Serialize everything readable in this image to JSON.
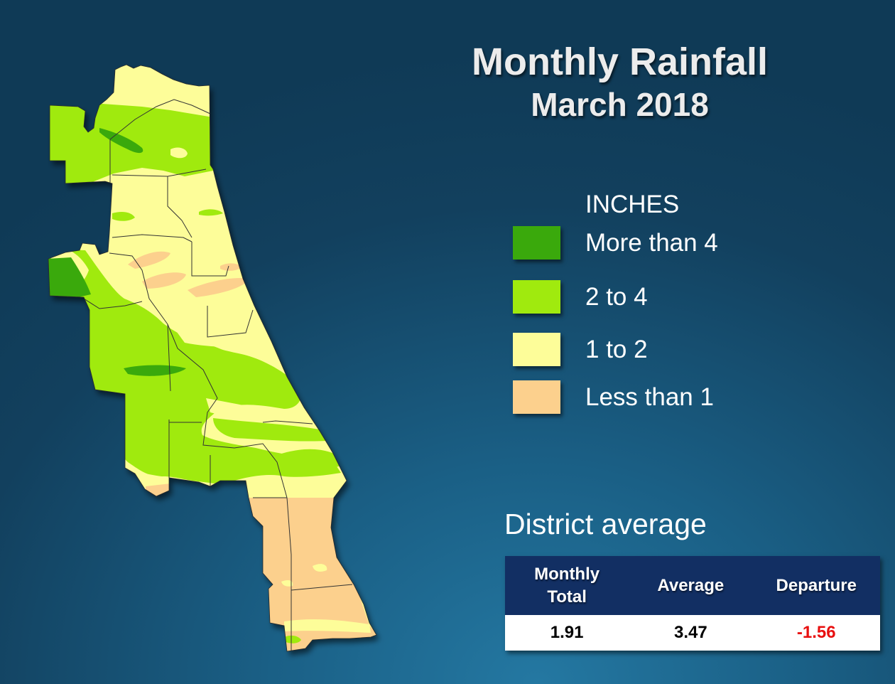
{
  "title": "Monthly Rainfall",
  "subtitle": "March 2018",
  "legend": {
    "heading": "INCHES",
    "items": [
      {
        "label": "More than 4",
        "color": "#3aa90c"
      },
      {
        "label": "2 to 4",
        "color": "#a0ea0e"
      },
      {
        "label": "1 to 2",
        "color": "#fdfd99"
      },
      {
        "label": "Less than 1",
        "color": "#fcd08d"
      }
    ]
  },
  "district": {
    "heading": "District average",
    "columns": [
      "Monthly\nTotal",
      "Average",
      "Departure"
    ],
    "monthly_total": "1.91",
    "average": "3.47",
    "departure": "-1.56",
    "departure_color": "#e81010",
    "header_color": "#122f63"
  }
}
